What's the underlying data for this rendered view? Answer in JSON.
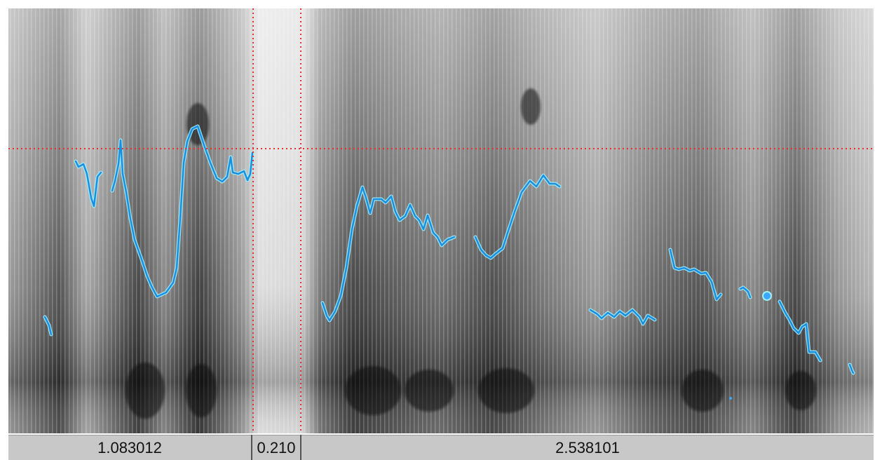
{
  "segments": [
    {
      "duration": "1.083012"
    },
    {
      "duration": "0.210"
    },
    {
      "duration": "2.538101"
    }
  ],
  "colors": {
    "pitch_contour": "#1a9be6",
    "pitch_glow": "#8ee6ff",
    "cursor": "#e03030",
    "duration_bar": "#c8c8c8"
  },
  "icons": [
    "selection-cursor",
    "pitch-curve"
  ]
}
